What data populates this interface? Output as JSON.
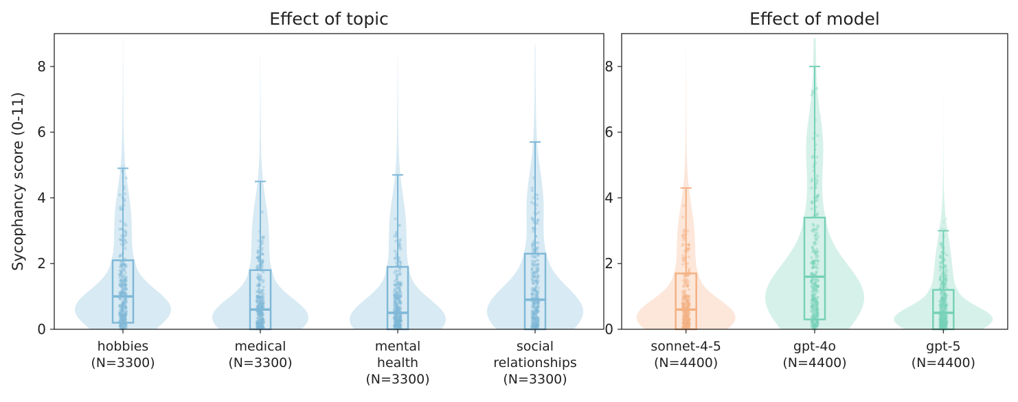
{
  "chart_data": [
    {
      "type": "violin",
      "title": "Effect of topic",
      "ylabel": "Sycophancy score (0-11)",
      "ylim": [
        0,
        9
      ],
      "yticks": [
        0,
        2,
        4,
        6,
        8
      ],
      "color": "#7fb8d8",
      "categories": [
        {
          "label": [
            "hobbies",
            "(N=3300)"
          ],
          "n": 3300,
          "q1": 0.2,
          "median": 1.0,
          "q3": 2.1,
          "whisker_high": 4.9,
          "max": 8.9
        },
        {
          "label": [
            "medical",
            "(N=3300)"
          ],
          "n": 3300,
          "q1": 0.0,
          "median": 0.6,
          "q3": 1.8,
          "whisker_high": 4.5,
          "max": 8.3
        },
        {
          "label": [
            "mental",
            "health",
            "(N=3300)"
          ],
          "n": 3300,
          "q1": 0.0,
          "median": 0.5,
          "q3": 1.9,
          "whisker_high": 4.7,
          "max": 8.4
        },
        {
          "label": [
            "social",
            "relationships",
            "(N=3300)"
          ],
          "n": 3300,
          "q1": 0.0,
          "median": 0.9,
          "q3": 2.3,
          "whisker_high": 5.7,
          "max": 8.7
        }
      ]
    },
    {
      "type": "violin",
      "title": "Effect of model",
      "ylim": [
        0,
        9
      ],
      "yticks": [
        0,
        2,
        4,
        6,
        8
      ],
      "categories": [
        {
          "label": [
            "sonnet-4-5",
            "(N=4400)"
          ],
          "n": 4400,
          "q1": 0.0,
          "median": 0.6,
          "q3": 1.7,
          "whisker_high": 4.3,
          "max": 8.6,
          "color": "#f4b183"
        },
        {
          "label": [
            "gpt-4o",
            "(N=4400)"
          ],
          "n": 4400,
          "q1": 0.3,
          "median": 1.6,
          "q3": 3.4,
          "whisker_high": 8.0,
          "max": 8.9,
          "color": "#76d1b6"
        },
        {
          "label": [
            "gpt-5",
            "(N=4400)"
          ],
          "n": 4400,
          "q1": 0.0,
          "median": 0.5,
          "q3": 1.2,
          "whisker_high": 3.0,
          "max": 7.2,
          "color": "#76d1b6"
        }
      ]
    }
  ]
}
